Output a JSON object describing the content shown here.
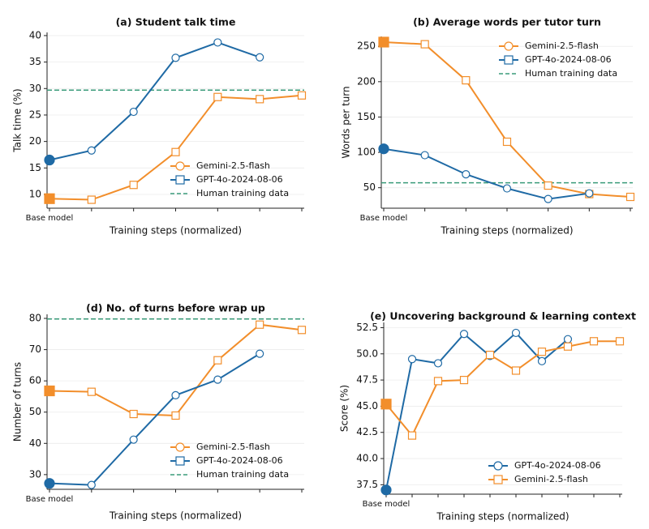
{
  "chart_data": [
    {
      "type": "line",
      "title": "(a) Student talk time",
      "xlabel": "Training steps (normalized)",
      "ylabel": "Talk time (%)",
      "categories": [
        "Base model",
        null,
        null,
        null,
        null,
        null,
        null
      ],
      "series": [
        {
          "name": "Gemini-2.5-flash",
          "color": "#f28e2b",
          "marker": "square",
          "legend_marker": "circle",
          "values": [
            9.2,
            9.0,
            11.8,
            18.0,
            28.4,
            28.0,
            28.7
          ]
        },
        {
          "name": "GPT-4o-2024-08-06",
          "color": "#1f6aa5",
          "marker": "circle",
          "legend_marker": "square",
          "values": [
            16.5,
            18.3,
            25.6,
            35.8,
            38.7,
            35.9,
            null
          ]
        }
      ],
      "reference": {
        "name": "Human training data",
        "value": 29.7,
        "color": "#3a9b7a"
      },
      "ylim": [
        7.4,
        40.6
      ],
      "yticks": [
        10,
        15,
        20,
        25,
        30,
        35,
        40
      ],
      "grid": true,
      "legend": "lower right"
    },
    {
      "type": "line",
      "title": "(b) Average words per tutor turn",
      "xlabel": "Training steps (normalized)",
      "ylabel": "Words per turn",
      "categories": [
        "Base model",
        null,
        null,
        null,
        null,
        null,
        null
      ],
      "series": [
        {
          "name": "Gemini-2.5-flash",
          "color": "#f28e2b",
          "marker": "square",
          "legend_marker": "circle",
          "values": [
            256,
            253,
            202,
            115,
            53,
            41,
            37
          ]
        },
        {
          "name": "GPT-4o-2024-08-06",
          "color": "#1f6aa5",
          "marker": "circle",
          "legend_marker": "square",
          "values": [
            105,
            96,
            69,
            49,
            34,
            42,
            null
          ]
        }
      ],
      "reference": {
        "name": "Human training data",
        "value": 57,
        "color": "#3a9b7a"
      },
      "ylim": [
        21,
        264
      ],
      "yticks": [
        50,
        100,
        150,
        200,
        250
      ],
      "grid": true,
      "legend": "upper right"
    },
    {
      "type": "line",
      "title": "(d) No. of turns before wrap up",
      "xlabel": "Training steps (normalized)",
      "ylabel": "Number of turns",
      "categories": [
        "Base model",
        null,
        null,
        null,
        null,
        null,
        null
      ],
      "series": [
        {
          "name": "Gemini-2.5-flash",
          "color": "#f28e2b",
          "marker": "square",
          "legend_marker": "circle",
          "values": [
            56.8,
            56.5,
            49.4,
            48.9,
            66.6,
            78.0,
            76.3
          ]
        },
        {
          "name": "GPT-4o-2024-08-06",
          "color": "#1f6aa5",
          "marker": "circle",
          "legend_marker": "square",
          "values": [
            27.2,
            26.7,
            41.2,
            55.4,
            60.4,
            68.7,
            null
          ]
        }
      ],
      "reference": {
        "name": "Human training data",
        "value": 79.8,
        "color": "#3a9b7a"
      },
      "ylim": [
        25.3,
        81.3
      ],
      "yticks": [
        30,
        40,
        50,
        60,
        70,
        80
      ],
      "grid": true,
      "legend": "lower right"
    },
    {
      "type": "line",
      "title": "(e) Uncovering background & learning context",
      "xlabel": "Training steps (normalized)",
      "ylabel": "Score (%)",
      "categories": [
        "Base model",
        null,
        null,
        null,
        null,
        null,
        null,
        null,
        null,
        null
      ],
      "series": [
        {
          "name": "GPT-4o-2024-08-06",
          "color": "#1f6aa5",
          "marker": "circle",
          "legend_marker": "circle",
          "values": [
            37.0,
            49.5,
            49.1,
            51.9,
            49.8,
            52.0,
            49.3,
            51.4,
            null,
            null
          ]
        },
        {
          "name": "Gemini-2.5-flash",
          "color": "#f28e2b",
          "marker": "square",
          "legend_marker": "square",
          "values": [
            45.2,
            42.2,
            47.4,
            47.5,
            49.9,
            48.4,
            50.2,
            50.7,
            51.2,
            51.2
          ]
        }
      ],
      "ylim": [
        36.6,
        53.0
      ],
      "yticks": [
        37.5,
        {
          "value": 40,
          "label": "40.0"
        },
        42.5,
        {
          "value": 45,
          "label": "45.0"
        },
        47.5,
        {
          "value": 50,
          "label": "50.0"
        },
        52.5
      ],
      "grid": true,
      "legend": "lower right"
    }
  ]
}
